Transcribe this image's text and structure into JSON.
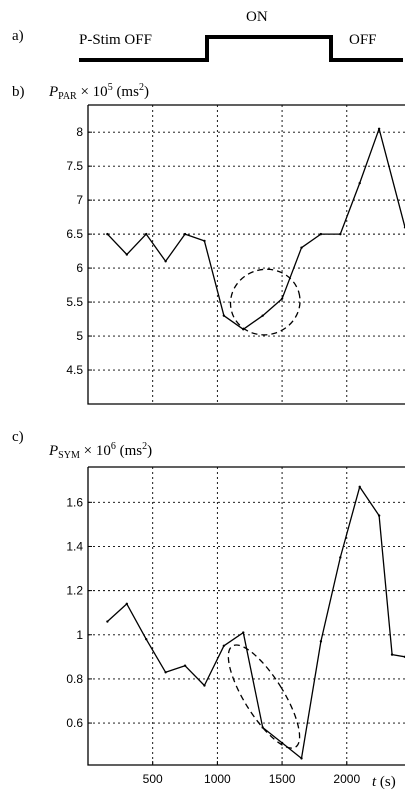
{
  "panel_a": {
    "label": "a)",
    "off_left": "P-Stim OFF",
    "on": "ON",
    "off_right": "OFF"
  },
  "chart_data": [
    {
      "type": "line",
      "panel_label": "b)",
      "ylabel": "P_PAR × 10^5 (ms^2)",
      "ylabel_parts": {
        "sym": "P",
        "sub": "PAR",
        "mult": " × 10",
        "exp": "5",
        "unit_pre": " (ms",
        "unit_exp": "2",
        "unit_post": ")"
      },
      "xlim": [
        0,
        2450
      ],
      "ylim": [
        4,
        8.4
      ],
      "yticks": [
        4.5,
        5,
        5.5,
        6,
        6.5,
        7,
        7.5,
        8
      ],
      "ytick_labels": [
        "4.5",
        "5",
        "5.5",
        "6",
        "6.5",
        "7",
        "7.5",
        "8"
      ],
      "xgrid": [
        500,
        1000,
        1500,
        2000
      ],
      "grid": true,
      "x": [
        150,
        300,
        450,
        600,
        750,
        900,
        1050,
        1200,
        1350,
        1500,
        1650,
        1800,
        1950,
        2100,
        2250,
        2450
      ],
      "y": [
        6.5,
        6.2,
        6.5,
        6.1,
        6.5,
        6.4,
        5.3,
        5.1,
        5.3,
        5.55,
        6.3,
        6.5,
        6.5,
        7.25,
        8.05,
        6.6
      ],
      "annotation": {
        "type": "ellipse",
        "cx": 1370,
        "cy": 5.5,
        "rx": 270,
        "ry": 0.48,
        "angle": -16
      }
    },
    {
      "type": "line",
      "panel_label": "c)",
      "ylabel": "P_SYM × 10^6 (ms^2)",
      "ylabel_parts": {
        "sym": "P",
        "sub": "SYM",
        "mult": " × 10",
        "exp": "6",
        "unit_pre": " (ms",
        "unit_exp": "2",
        "unit_post": ")"
      },
      "xlabel": "t (s)",
      "xlabel_parts": {
        "var": "t",
        "unit": " (s)"
      },
      "xlim": [
        0,
        2450
      ],
      "ylim": [
        0.41,
        1.76
      ],
      "yticks": [
        0.6,
        0.8,
        1,
        1.2,
        1.4,
        1.6
      ],
      "ytick_labels": [
        "0.6",
        "0.8",
        "1",
        "1.2",
        "1.4",
        "1.6"
      ],
      "xticks": [
        500,
        1000,
        1500,
        2000
      ],
      "xtick_labels": [
        "500",
        "1000",
        "1500",
        "2000"
      ],
      "grid": true,
      "x": [
        150,
        300,
        450,
        600,
        750,
        900,
        1050,
        1200,
        1350,
        1500,
        1650,
        1800,
        1950,
        2100,
        2250,
        2350,
        2450
      ],
      "y": [
        1.06,
        1.14,
        0.98,
        0.83,
        0.86,
        0.77,
        0.95,
        1.01,
        0.58,
        0.51,
        0.44,
        0.97,
        1.35,
        1.67,
        1.54,
        0.91,
        0.9
      ],
      "annotation": {
        "type": "ellipse",
        "cx": 1360,
        "cy": 0.72,
        "rx": 150,
        "ry": 0.27,
        "angle": -32
      }
    }
  ]
}
